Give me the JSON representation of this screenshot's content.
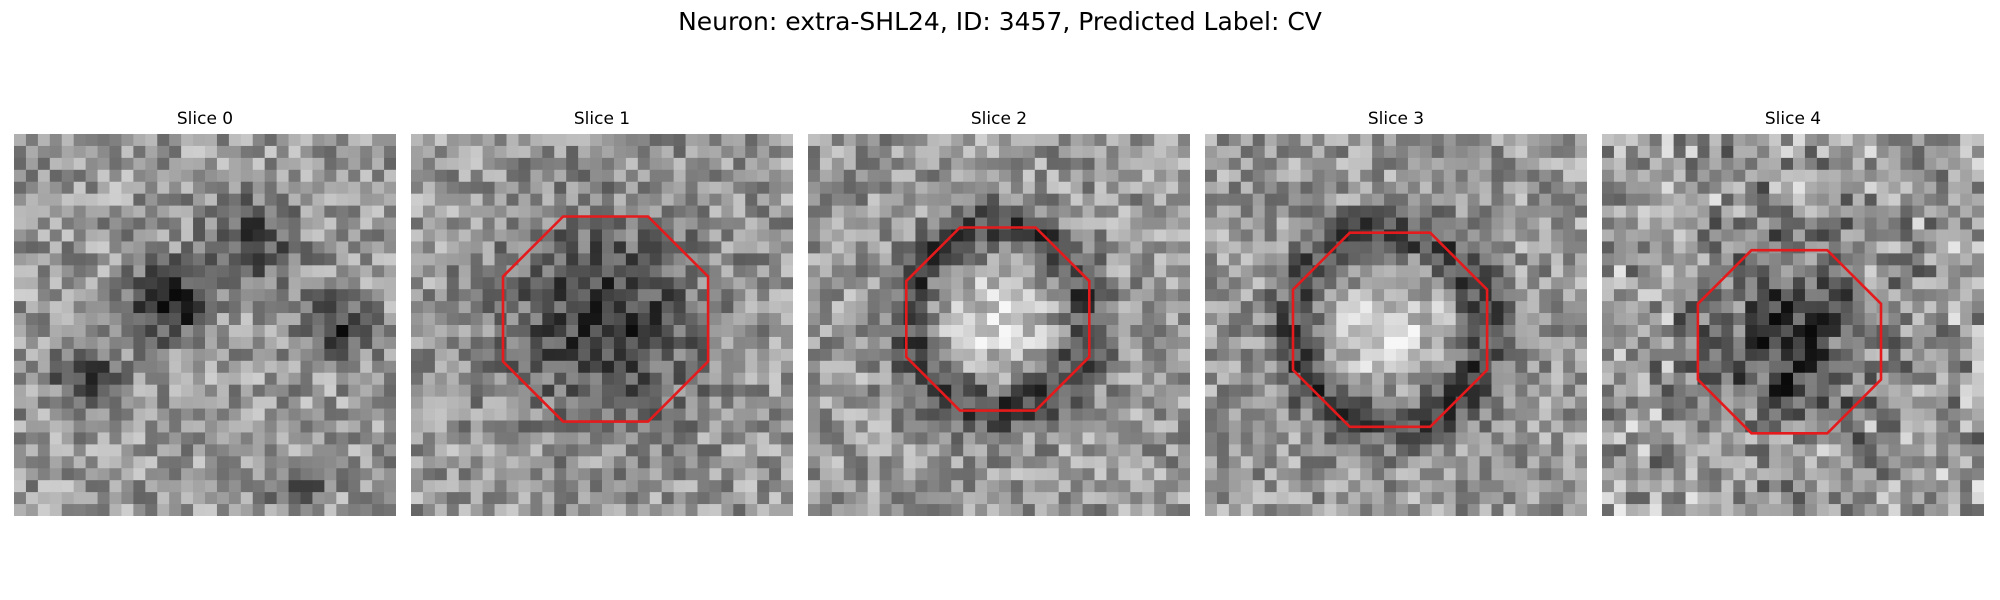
{
  "figure": {
    "title": "Neuron: extra-SHL24, ID: 3457, Predicted Label: CV"
  },
  "slices": [
    {
      "title": "Slice 0",
      "pattern": "noisy",
      "ring": false,
      "dark_blob": false
    },
    {
      "title": "Slice 1",
      "pattern": "dark_center",
      "ring": true
    },
    {
      "title": "Slice 2",
      "pattern": "bright_core_dark_ring",
      "ring": true
    },
    {
      "title": "Slice 3",
      "pattern": "bright_core_dark_ring",
      "ring": true
    },
    {
      "title": "Slice 4",
      "pattern": "dark_center_noisy",
      "ring": true
    }
  ],
  "style": {
    "ring_color": "#e41a1c",
    "colormap": "grayscale"
  }
}
